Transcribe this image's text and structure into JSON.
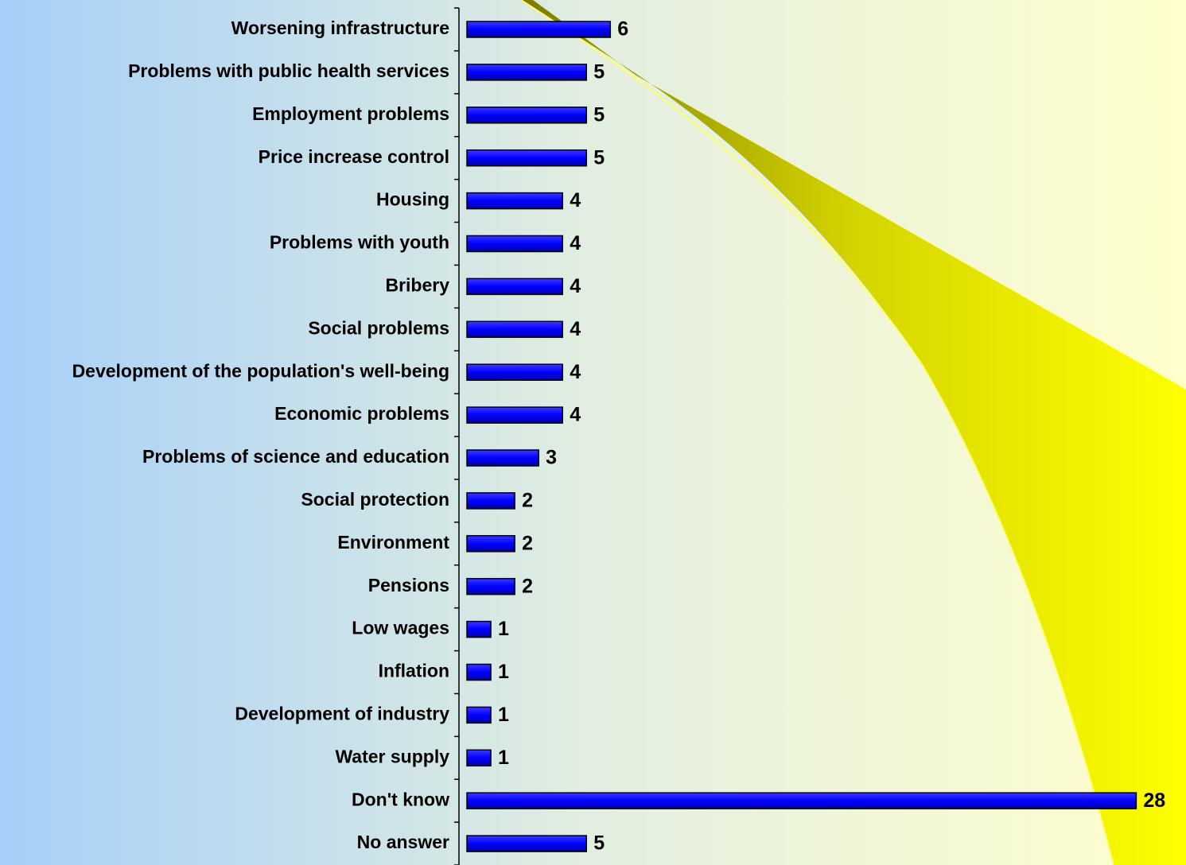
{
  "chart_data": {
    "type": "bar",
    "orientation": "horizontal",
    "color": "#0000ff",
    "categories": [
      "Worsening infrastructure",
      "Problems with public health services",
      "Employment problems",
      "Price increase control",
      "Housing",
      "Problems with youth",
      "Bribery",
      "Social problems",
      "Development of the population's well-being",
      "Economic problems",
      "Problems of science and education",
      "Social protection",
      "Environment",
      "Pensions",
      "Low wages",
      "Inflation",
      "Development of industry",
      "Water supply",
      "Don't know",
      "No answer"
    ],
    "values": [
      6,
      5,
      5,
      5,
      4,
      4,
      4,
      4,
      4,
      4,
      3,
      2,
      2,
      2,
      1,
      1,
      1,
      1,
      28,
      5
    ]
  }
}
